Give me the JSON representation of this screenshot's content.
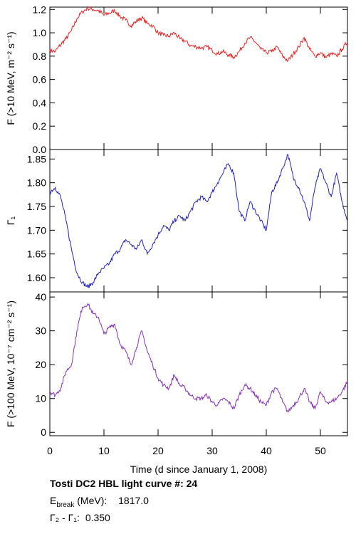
{
  "chart_data": [
    {
      "type": "line",
      "ylabel": "F (>10 MeV, m⁻² s⁻¹)",
      "ylim": [
        0.0,
        1.22
      ],
      "yticks": [
        0.0,
        0.2,
        0.4,
        0.6,
        0.8,
        1.0,
        1.2
      ],
      "ytick_labels": [
        "0.0",
        "0.2",
        "0.4",
        "0.6",
        "0.8",
        "1.0",
        "1.2"
      ],
      "color": "#ee2222",
      "x": [
        0,
        1,
        2,
        3,
        4,
        5,
        6,
        7,
        8,
        9,
        10,
        11,
        12,
        13,
        14,
        15,
        16,
        17,
        18,
        19,
        20,
        21,
        22,
        23,
        24,
        25,
        26,
        27,
        28,
        29,
        30,
        31,
        32,
        33,
        34,
        35,
        36,
        37,
        38,
        39,
        40,
        41,
        42,
        43,
        44,
        45,
        46,
        47,
        48,
        49,
        50,
        51,
        52,
        53,
        54,
        55
      ],
      "y": [
        0.85,
        0.84,
        0.9,
        0.95,
        1.02,
        1.12,
        1.18,
        1.21,
        1.2,
        1.19,
        1.15,
        1.17,
        1.19,
        1.14,
        1.11,
        1.06,
        1.1,
        1.13,
        1.08,
        1.06,
        1.0,
        0.98,
        0.97,
        1.0,
        0.95,
        0.93,
        0.89,
        0.88,
        0.87,
        0.88,
        0.85,
        0.82,
        0.84,
        0.81,
        0.79,
        0.84,
        0.91,
        0.96,
        0.92,
        0.86,
        0.83,
        0.84,
        0.88,
        0.8,
        0.76,
        0.82,
        0.88,
        0.96,
        0.86,
        0.8,
        0.83,
        0.79,
        0.82,
        0.8,
        0.86,
        0.92
      ]
    },
    {
      "type": "line",
      "ylabel": "Γ₁",
      "ylim": [
        1.57,
        1.87
      ],
      "yticks": [
        1.6,
        1.65,
        1.7,
        1.75,
        1.8,
        1.85
      ],
      "ytick_labels": [
        "1.60",
        "1.65",
        "1.70",
        "1.75",
        "1.80",
        "1.85"
      ],
      "color": "#2222bb",
      "x": [
        0,
        1,
        2,
        3,
        4,
        5,
        6,
        7,
        8,
        9,
        10,
        11,
        12,
        13,
        14,
        15,
        16,
        17,
        18,
        19,
        20,
        21,
        22,
        23,
        24,
        25,
        26,
        27,
        28,
        29,
        30,
        31,
        32,
        33,
        34,
        35,
        36,
        37,
        38,
        39,
        40,
        41,
        42,
        43,
        44,
        45,
        46,
        47,
        48,
        49,
        50,
        51,
        52,
        53,
        54,
        55
      ],
      "y": [
        1.78,
        1.79,
        1.77,
        1.72,
        1.66,
        1.61,
        1.59,
        1.58,
        1.59,
        1.61,
        1.62,
        1.63,
        1.65,
        1.66,
        1.68,
        1.67,
        1.66,
        1.68,
        1.65,
        1.67,
        1.69,
        1.71,
        1.7,
        1.72,
        1.73,
        1.72,
        1.74,
        1.76,
        1.77,
        1.76,
        1.78,
        1.8,
        1.82,
        1.84,
        1.82,
        1.74,
        1.72,
        1.76,
        1.74,
        1.72,
        1.7,
        1.78,
        1.8,
        1.83,
        1.86,
        1.81,
        1.79,
        1.76,
        1.72,
        1.79,
        1.83,
        1.8,
        1.77,
        1.82,
        1.76,
        1.72
      ]
    },
    {
      "type": "line",
      "xlabel": "Time (d since January 1, 2008)",
      "ylabel": "F (>100 MeV, 10⁻⁷ cm⁻² s⁻¹)",
      "xlim": [
        0,
        55
      ],
      "xticks": [
        0,
        10,
        20,
        30,
        40,
        50
      ],
      "xtick_labels": [
        "0",
        "10",
        "20",
        "30",
        "40",
        "50"
      ],
      "ylim": [
        -1,
        41.5
      ],
      "yticks": [
        0,
        10,
        20,
        30,
        40
      ],
      "ytick_labels": [
        "0",
        "10",
        "20",
        "30",
        "40"
      ],
      "color": "#8833bb",
      "x": [
        0,
        1,
        2,
        3,
        4,
        5,
        6,
        7,
        8,
        9,
        10,
        11,
        12,
        13,
        14,
        15,
        16,
        17,
        18,
        19,
        20,
        21,
        22,
        23,
        24,
        25,
        26,
        27,
        28,
        29,
        30,
        31,
        32,
        33,
        34,
        35,
        36,
        37,
        38,
        39,
        40,
        41,
        42,
        43,
        44,
        45,
        46,
        47,
        48,
        49,
        50,
        51,
        52,
        53,
        54,
        55
      ],
      "y": [
        12,
        11,
        13,
        18,
        20,
        30,
        37,
        38,
        35,
        34,
        29,
        31,
        32,
        26,
        24,
        20,
        25,
        30,
        24,
        20,
        16,
        14,
        13,
        17,
        14,
        13,
        11,
        10,
        10,
        11,
        9,
        8,
        10,
        9,
        7,
        11,
        14,
        13,
        11,
        9,
        8,
        12,
        13,
        9,
        6,
        8,
        10,
        13,
        9,
        7,
        12,
        9,
        9,
        10,
        12,
        15
      ]
    }
  ],
  "footer": {
    "title_label": "Tosti DC2 HBL light curve #:",
    "title_value": "24",
    "ebreak_main": "E",
    "ebreak_sub": "break",
    "ebreak_unit": "(MeV):",
    "ebreak_value": "1817.0",
    "gamma_label": "Γ₂ - Γ₁:",
    "gamma_value": "0.350"
  }
}
